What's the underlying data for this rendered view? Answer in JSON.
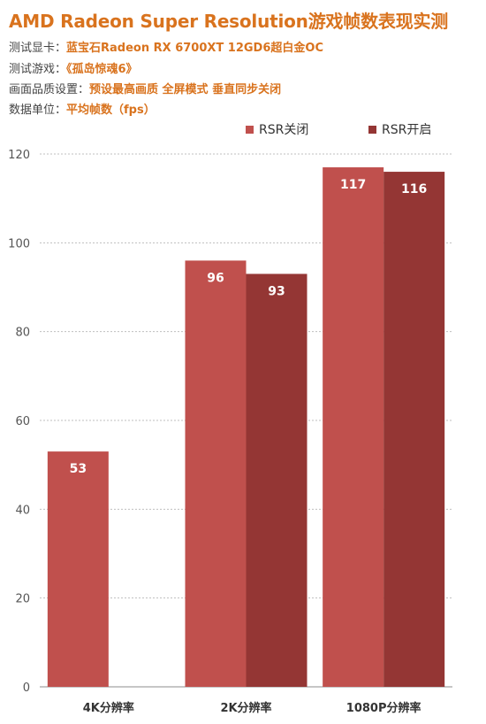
{
  "header": {
    "title": "AMD Radeon Super Resolution游戏帧数表现实测",
    "rows": [
      {
        "label": "测试显卡：",
        "value": "蓝宝石Radeon  RX 6700XT  12GD6超白金OC"
      },
      {
        "label": "测试游戏：",
        "value": "《孤岛惊魂6》"
      },
      {
        "label": "画面品质设置：",
        "value": "预设最高画质   全屏模式   垂直同步关闭"
      },
      {
        "label": "数据单位：",
        "value": "平均帧数（fps）"
      }
    ]
  },
  "colors": {
    "accent": "#d9731e",
    "series1": "#c0504d",
    "series2": "#943634",
    "grid": "#bfbfbf"
  },
  "chart_data": {
    "type": "bar",
    "categories": [
      "4K分辨率",
      "2K分辨率",
      "1080P分辨率"
    ],
    "series": [
      {
        "name": "RSR关闭",
        "values": [
          53,
          96,
          117
        ]
      },
      {
        "name": "RSR开启",
        "values": [
          null,
          93,
          116
        ]
      }
    ],
    "yticks": [
      0,
      20,
      40,
      60,
      80,
      100,
      120
    ],
    "ylim": [
      0,
      120
    ],
    "grid": true,
    "legend_position": "top-right",
    "data_labels": true
  }
}
